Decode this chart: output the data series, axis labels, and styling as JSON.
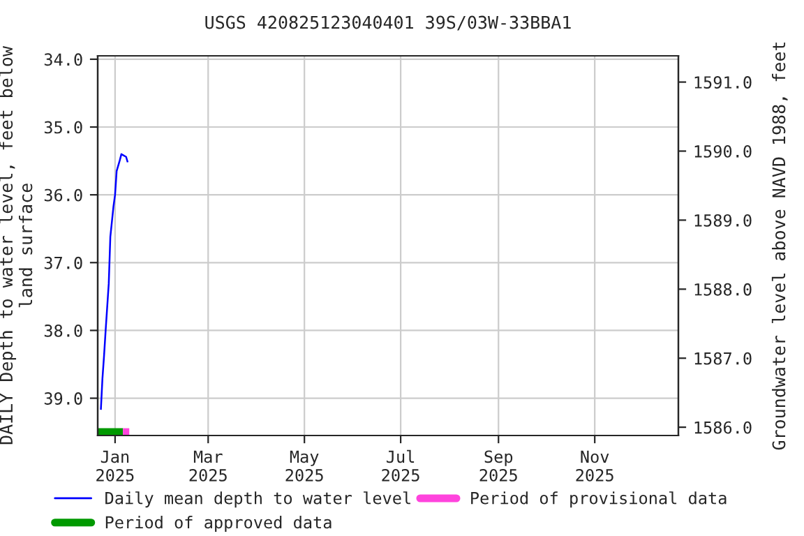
{
  "chart_data": {
    "type": "line",
    "title": "USGS 420825123040401 39S/03W-33BBA1",
    "ylabel": "DAILY Depth to water level, feet below\nland surface",
    "y2label": "Groundwater level above NAVD 1988, feet",
    "series": [
      {
        "name": "Daily mean depth to water level",
        "color": "#0000ff",
        "x": [
          "2024-12-23",
          "2024-12-24",
          "2024-12-25",
          "2024-12-26",
          "2024-12-28",
          "2024-12-29",
          "2024-12-31",
          "2025-01-01",
          "2025-01-02",
          "2025-01-04",
          "2025-01-05",
          "2025-01-08",
          "2025-01-09"
        ],
        "values": [
          39.17,
          38.71,
          38.38,
          38.01,
          37.31,
          36.62,
          36.17,
          36.0,
          35.65,
          35.49,
          35.4,
          35.44,
          35.52
        ]
      },
      {
        "name": "Period of approved data",
        "color": "#009900",
        "x": [
          "2024-12-21",
          "2025-01-06"
        ],
        "values": [
          39.5,
          39.5
        ]
      },
      {
        "name": "Period of provisional data",
        "color": "#ff44dd",
        "x": [
          "2025-01-06",
          "2025-01-10"
        ],
        "values": [
          39.5,
          39.5
        ]
      }
    ],
    "xlim": [
      "2024-12-21",
      "2025-12-24"
    ],
    "xticks": [
      {
        "value": "2025-01-01",
        "label": "Jan\n2025"
      },
      {
        "value": "2025-03-01",
        "label": "Mar\n2025"
      },
      {
        "value": "2025-05-01",
        "label": "May\n2025"
      },
      {
        "value": "2025-07-01",
        "label": "Jul\n2025"
      },
      {
        "value": "2025-09-01",
        "label": "Sep\n2025"
      },
      {
        "value": "2025-11-01",
        "label": "Nov\n2025"
      }
    ],
    "ylim": [
      39.55,
      33.95
    ],
    "yticks": [
      {
        "value": 34,
        "label": "34.0"
      },
      {
        "value": 35,
        "label": "35.0"
      },
      {
        "value": 36,
        "label": "36.0"
      },
      {
        "value": 37,
        "label": "37.0"
      },
      {
        "value": 38,
        "label": "38.0"
      },
      {
        "value": 39,
        "label": "39.0"
      }
    ],
    "y2lim": [
      1585.88,
      1591.38
    ],
    "y2ticks": [
      {
        "value": 1586,
        "label": "1586.0"
      },
      {
        "value": 1587,
        "label": "1587.0"
      },
      {
        "value": 1588,
        "label": "1588.0"
      },
      {
        "value": 1589,
        "label": "1589.0"
      },
      {
        "value": 1590,
        "label": "1590.0"
      },
      {
        "value": 1591,
        "label": "1591.0"
      }
    ],
    "grid": true,
    "legend": "bottom"
  }
}
